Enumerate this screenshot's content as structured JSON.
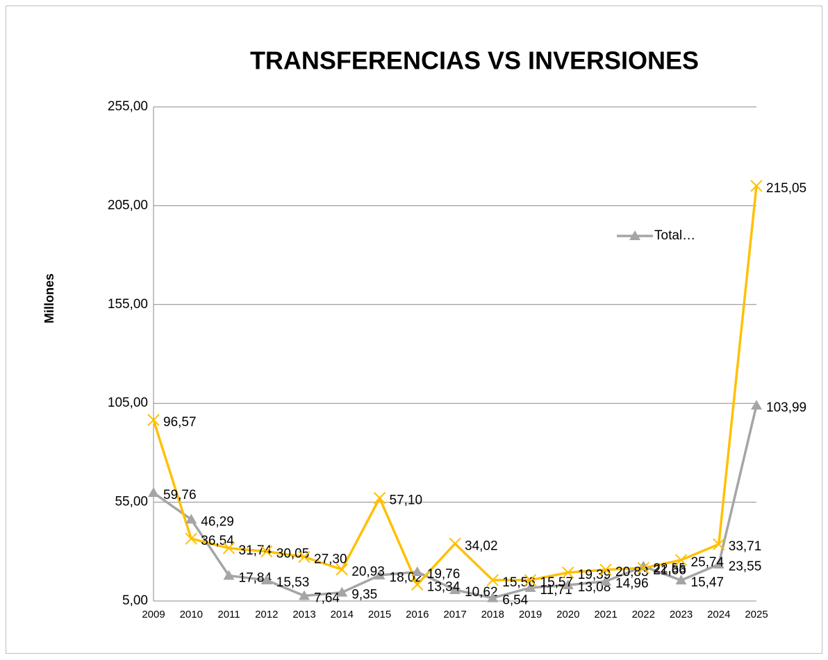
{
  "chart_data": {
    "type": "line",
    "title": "TRANSFERENCIAS VS  INVERSIONES",
    "y_label": "Millones",
    "categories": [
      "2009",
      "2010",
      "2011",
      "2012",
      "2013",
      "2014",
      "2015",
      "2016",
      "2017",
      "2018",
      "2019",
      "2020",
      "2021",
      "2022",
      "2023",
      "2024",
      "2025"
    ],
    "series": [
      {
        "name": "Total…",
        "color": "#a5a5a5",
        "marker": "triangle",
        "values": [
          59.76,
          46.29,
          17.84,
          15.53,
          7.64,
          9.35,
          18.02,
          19.76,
          10.62,
          6.54,
          11.71,
          13.08,
          14.96,
          22.55,
          15.47,
          23.55,
          103.99
        ],
        "value_labels": [
          "59,76",
          "46,29",
          "17,84",
          "15,53",
          "7,64",
          "9,35",
          "18,02",
          "19,76",
          "10,62",
          "6,54",
          "11,71",
          "13,08",
          "14,96",
          "22,55",
          "15,47",
          "23,55",
          "103,99"
        ]
      },
      {
        "color": "#ffc000",
        "marker": "x",
        "values": [
          96.57,
          36.54,
          31.74,
          30.05,
          27.3,
          20.93,
          57.1,
          13.34,
          34.02,
          15.56,
          15.57,
          19.39,
          20.83,
          21.66,
          25.74,
          33.71,
          215.05
        ],
        "value_labels": [
          "96,57",
          "36,54",
          "31,74",
          "30,05",
          "27,30",
          "20,93",
          "57,10",
          "13,34",
          "34,02",
          "15,56",
          "15,57",
          "19,39",
          "20,83",
          "21,66",
          "25,74",
          "33,71",
          "215,05"
        ]
      }
    ],
    "ylim": [
      5,
      255
    ],
    "yticks": [
      {
        "value": 5,
        "label": "5,00"
      },
      {
        "value": 55,
        "label": "55,00"
      },
      {
        "value": 105,
        "label": "105,00"
      },
      {
        "value": 155,
        "label": "155,00"
      },
      {
        "value": 205,
        "label": "205,00"
      },
      {
        "value": 255,
        "label": "255,00"
      }
    ],
    "grid": true,
    "legend": "right"
  }
}
